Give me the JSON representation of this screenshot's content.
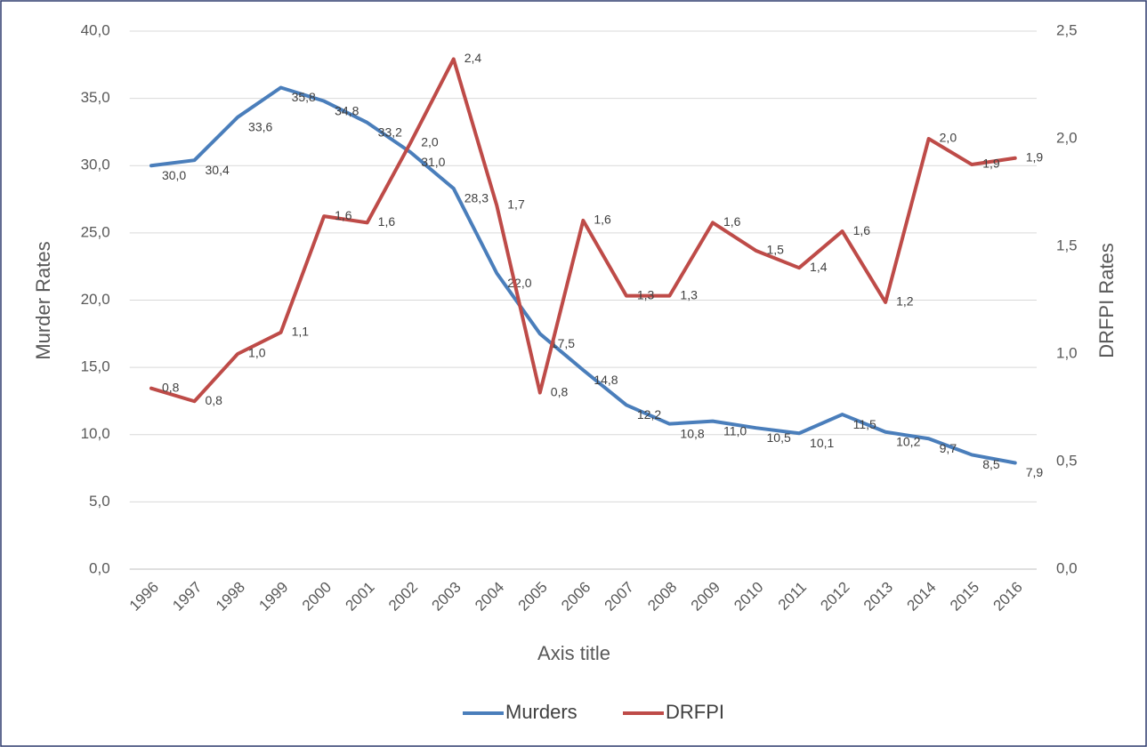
{
  "chart_data": {
    "type": "line",
    "x_label": "Axis title",
    "y_label": "Murder Rates",
    "y2_label": "DRFPI Rates",
    "categories": [
      "1996",
      "1997",
      "1998",
      "1999",
      "2000",
      "2001",
      "2002",
      "2003",
      "2004",
      "2005",
      "2006",
      "2007",
      "2008",
      "2009",
      "2010",
      "2011",
      "2012",
      "2013",
      "2014",
      "2015",
      "2016"
    ],
    "series": [
      {
        "name": "Murders",
        "color": "#4a7ebb",
        "values": [
          30.0,
          30.4,
          33.6,
          35.8,
          34.8,
          33.2,
          31.0,
          28.3,
          22.0,
          17.5,
          14.8,
          12.2,
          10.8,
          11.0,
          10.5,
          10.1,
          11.5,
          10.2,
          9.7,
          8.5,
          7.9
        ],
        "value_labels": [
          "30,0",
          "30,4",
          "33,6",
          "35,8",
          "34,8",
          "33,2",
          "31,0",
          "28,3",
          "22,0",
          "17,5",
          "14,8",
          "12,2",
          "10,8",
          "11,0",
          "10,5",
          "10,1",
          "11,5",
          "10,2",
          "9,7",
          "8,5",
          "7,9"
        ]
      },
      {
        "name": "DRFPI",
        "color": "#be4b48",
        "axis": "y2",
        "values": [
          0.84,
          0.78,
          1.0,
          1.1,
          1.64,
          1.61,
          1.98,
          2.37,
          1.69,
          0.82,
          1.62,
          1.27,
          1.27,
          1.61,
          1.48,
          1.4,
          1.57,
          1.24,
          2.0,
          1.88,
          1.91
        ],
        "value_labels": [
          "0,8",
          "0,8",
          "1,0",
          "1,1",
          "1,6",
          "1,6",
          "2,0",
          "2,4",
          "1,7",
          "0,8",
          "1,6",
          "1,3",
          "1,3",
          "1,6",
          "1,5",
          "1,4",
          "1,6",
          "1,2",
          "2,0",
          "1,9",
          "1,9"
        ]
      }
    ],
    "ylim": [
      0,
      40
    ],
    "yticks": [
      {
        "value": 0,
        "label": "0,0"
      },
      {
        "value": 5,
        "label": "5,0"
      },
      {
        "value": 10,
        "label": "10,0"
      },
      {
        "value": 15,
        "label": "15,0"
      },
      {
        "value": 20,
        "label": "20,0"
      },
      {
        "value": 25,
        "label": "25,0"
      },
      {
        "value": 30,
        "label": "30,0"
      },
      {
        "value": 35,
        "label": "35,0"
      },
      {
        "value": 40,
        "label": "40,0"
      }
    ],
    "y2lim": [
      0,
      2.5
    ],
    "y2ticks": [
      {
        "value": 0,
        "label": "0,0"
      },
      {
        "value": 0.5,
        "label": "0,5"
      },
      {
        "value": 1,
        "label": "1,0"
      },
      {
        "value": 1.5,
        "label": "1,5"
      },
      {
        "value": 2,
        "label": "2,0"
      },
      {
        "value": 2.5,
        "label": "2,5"
      }
    ],
    "grid": true,
    "legend": "bottom"
  }
}
